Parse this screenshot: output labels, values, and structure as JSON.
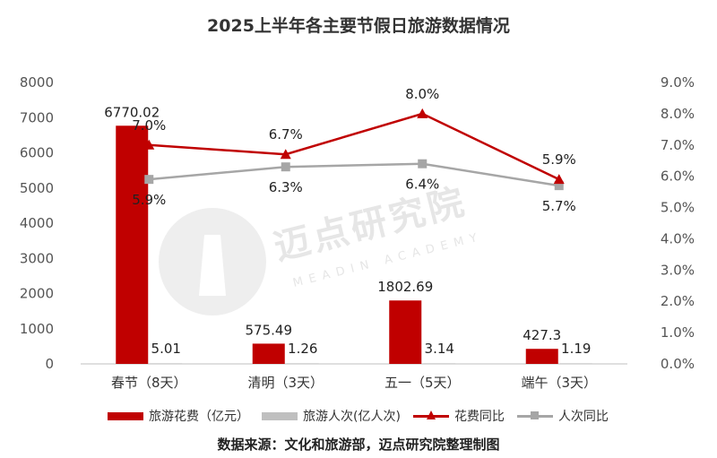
{
  "title": "2025上半年各主要节假日旅游数据情况",
  "source": "数据来源：文化和旅游部，迈点研究院整理制图",
  "watermark": {
    "text": "迈点研究院",
    "sub": "MEADIN ACADEMY"
  },
  "colors": {
    "bar_spend": "#c00000",
    "bar_people": "#bfbfbf",
    "line_spend": "#c00000",
    "line_people": "#a6a6a6"
  },
  "chart_data": {
    "type": "bar",
    "title": "2025上半年各主要节假日旅游数据情况",
    "categories": [
      "春节（8天）",
      "清明（3天）",
      "五一（5天）",
      "端午（3天）"
    ],
    "series": [
      {
        "name": "旅游花费（亿元）",
        "kind": "bar",
        "axis": "left",
        "values": [
          6770.02,
          575.49,
          1802.69,
          427.3
        ],
        "labels": [
          "6770.02",
          "575.49",
          "1802.69",
          "427.3"
        ]
      },
      {
        "name": "旅游人次(亿人次)",
        "kind": "bar",
        "axis": "left",
        "values": [
          5.01,
          1.26,
          3.14,
          1.19
        ],
        "labels": [
          "5.01",
          "1.26",
          "3.14",
          "1.19"
        ]
      },
      {
        "name": "花费同比",
        "kind": "line",
        "axis": "right",
        "marker": "triangle",
        "values": [
          7.0,
          6.7,
          8.0,
          5.9
        ],
        "labels": [
          "7.0%",
          "6.7%",
          "8.0%",
          "5.9%"
        ]
      },
      {
        "name": "人次同比",
        "kind": "line",
        "axis": "right",
        "marker": "square",
        "values": [
          5.9,
          6.3,
          6.4,
          5.7
        ],
        "labels": [
          "5.9%",
          "6.3%",
          "6.4%",
          "5.7%"
        ]
      }
    ],
    "y_left": {
      "min": 0,
      "max": 8000,
      "ticks": [
        "0",
        "1000",
        "2000",
        "3000",
        "4000",
        "5000",
        "6000",
        "7000",
        "8000"
      ]
    },
    "y_right": {
      "min": 0,
      "max": 9,
      "ticks": [
        "0.0%",
        "1.0%",
        "2.0%",
        "3.0%",
        "4.0%",
        "5.0%",
        "6.0%",
        "7.0%",
        "8.0%",
        "9.0%"
      ]
    },
    "grid": false,
    "legend": "bottom"
  }
}
